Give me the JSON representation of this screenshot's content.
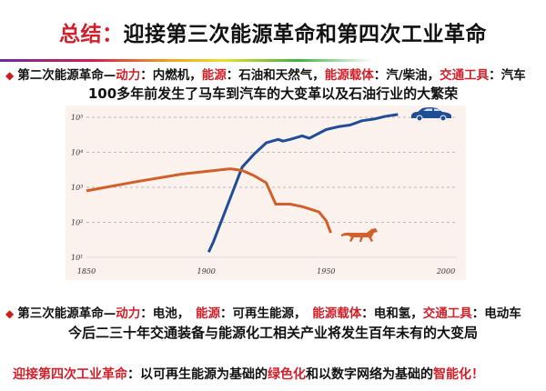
{
  "title": {
    "highlight": "总结：",
    "rest": "迎接第三次能源革命和第四次工业革命"
  },
  "bullet1": {
    "segments": [
      {
        "text": "第二次能源革命—",
        "red": false
      },
      {
        "text": "动力",
        "red": true
      },
      {
        "text": "：内燃机，",
        "red": false
      },
      {
        "text": "能源",
        "red": true
      },
      {
        "text": "：石油和天然气，",
        "red": false
      },
      {
        "text": "能源载体",
        "red": true
      },
      {
        "text": "：汽/柴油，",
        "red": false
      },
      {
        "text": "交通工具",
        "red": true
      },
      {
        "text": "：汽车",
        "red": false
      }
    ]
  },
  "subtitle1": "100多年前发生了马车到汽车的大变革以及石油行业的大繁荣",
  "bullet2": {
    "segments": [
      {
        "text": "第三次能源革命—",
        "red": false
      },
      {
        "text": "动力",
        "red": true
      },
      {
        "text": "：电池，　",
        "red": false
      },
      {
        "text": "能源",
        "red": true
      },
      {
        "text": "：可再生能源，　",
        "red": false
      },
      {
        "text": "能源载体",
        "red": true
      },
      {
        "text": "：电和氢，",
        "red": false
      },
      {
        "text": "交通工具",
        "red": true
      },
      {
        "text": "：电动车",
        "red": false
      }
    ]
  },
  "subtitle2": "今后二三十年交通装备与能源化工相关产业将发生百年未有的大变局",
  "conclusion": {
    "segments": [
      {
        "text": "迎接第四次工业革命",
        "red": true
      },
      {
        "text": "：以可再生能源为基础的",
        "red": false
      },
      {
        "text": "绿色化",
        "red": true
      },
      {
        "text": "和以数字网络为基础的",
        "red": false
      },
      {
        "text": "智能化",
        "red": true
      },
      {
        "text": "！",
        "red": true
      }
    ]
  },
  "colors": {
    "accent": "#d0202a",
    "car": "#1f4e96",
    "horse": "#d2602a",
    "panel": "#fbf1ed"
  },
  "chart_data": {
    "type": "line",
    "title": "",
    "xlabel": "",
    "ylabel": "",
    "xlim": [
      1850,
      2000
    ],
    "ylim": [
      10,
      100000
    ],
    "yscale": "log",
    "grid": "horizontal dashed",
    "xticks": [
      "1850",
      "1900",
      "1950",
      "2000"
    ],
    "xtick_values": [
      1850,
      1900,
      1950,
      2000
    ],
    "yticks": [
      "10¹",
      "10²",
      "10³",
      "10⁴",
      "10⁵"
    ],
    "ytick_values": [
      1,
      2,
      3,
      4,
      5
    ],
    "series": [
      {
        "icon": "car-icon",
        "color": "#1f4e96",
        "x": [
          1901,
          1903,
          1915,
          1920,
          1925,
          1930,
          1932,
          1935,
          1940,
          1943,
          1950,
          1955,
          1960,
          1965,
          1970,
          1975,
          1980
        ],
        "log10_y": [
          1.15,
          1.45,
          3.58,
          3.95,
          4.27,
          4.37,
          4.32,
          4.37,
          4.47,
          4.4,
          4.65,
          4.73,
          4.78,
          4.9,
          4.95,
          5.03,
          5.08
        ]
      },
      {
        "icon": "horse-icon",
        "color": "#d2602a",
        "x": [
          1850,
          1870,
          1890,
          1910,
          1915,
          1920,
          1925,
          1929,
          1935,
          1940,
          1947,
          1950,
          1952
        ],
        "log10_y": [
          2.9,
          3.15,
          3.38,
          3.53,
          3.48,
          3.33,
          3.13,
          2.52,
          2.52,
          2.45,
          2.3,
          2.05,
          1.7
        ]
      }
    ]
  }
}
